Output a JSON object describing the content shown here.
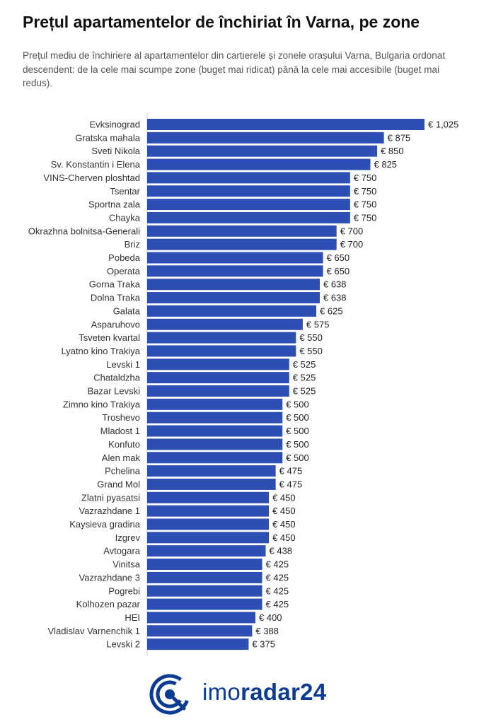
{
  "header": {
    "title": "Prețul apartamentelor de închiriat în Varna, pe zone",
    "subtitle": "Prețul mediu de închiriere al apartamentelor din cartierele și zonele orașului Varna, Bulgaria ordonat descendent: de la cele mai scumpe zone (buget mai ridicat) până la cele mai accesibile (buget mai redus)."
  },
  "chart_data": {
    "type": "bar",
    "orientation": "horizontal",
    "categories": [
      "Evksinograd",
      "Gratska mahala",
      "Sveti Nikola",
      "Sv. Konstantin i Elena",
      "VINS-Cherven ploshtad",
      "Tsentar",
      "Sportna zala",
      "Chayka",
      "Okrazhna bolnitsa-Generali",
      "Briz",
      "Pobeda",
      "Operata",
      "Gorna Traka",
      "Dolna Traka",
      "Galata",
      "Asparuhovo",
      "Tsveten kvartal",
      "Lyatno kino Trakiya",
      "Levski 1",
      "Chataldzha",
      "Bazar Levski",
      "Zimno kino Trakiya",
      "Troshevo",
      "Mladost 1",
      "Konfuto",
      "Alen mak",
      "Pchelina",
      "Grand Mol",
      "Zlatni pyasatsi",
      "Vazrazhdane 1",
      "Kaysieva gradina",
      "Izgrev",
      "Avtogara",
      "Vinitsa",
      "Vazrazhdane 3",
      "Pogrebi",
      "Kolhozen pazar",
      "HEI",
      "Vladislav Varnenchik 1",
      "Levski 2"
    ],
    "values": [
      1025,
      875,
      850,
      825,
      750,
      750,
      750,
      750,
      700,
      700,
      650,
      650,
      638,
      638,
      625,
      575,
      550,
      550,
      525,
      525,
      525,
      500,
      500,
      500,
      500,
      500,
      475,
      475,
      450,
      450,
      450,
      450,
      438,
      425,
      425,
      425,
      425,
      400,
      388,
      375
    ],
    "value_labels": [
      "€ 1,025",
      "€ 875",
      "€ 850",
      "€ 825",
      "€ 750",
      "€ 750",
      "€ 750",
      "€ 750",
      "€ 700",
      "€ 700",
      "€ 650",
      "€ 650",
      "€ 638",
      "€ 638",
      "€ 625",
      "€ 575",
      "€ 550",
      "€ 550",
      "€ 525",
      "€ 525",
      "€ 525",
      "€ 500",
      "€ 500",
      "€ 500",
      "€ 500",
      "€ 500",
      "€ 475",
      "€ 475",
      "€ 450",
      "€ 450",
      "€ 450",
      "€ 450",
      "€ 438",
      "€ 425",
      "€ 425",
      "€ 425",
      "€ 425",
      "€ 400",
      "€ 388",
      "€ 375"
    ],
    "xlim": [
      0,
      1025
    ],
    "bar_color": "#2d4fb5",
    "grid": false,
    "legend": "none"
  },
  "logo": {
    "text_light": "imo",
    "text_bold": "radar24",
    "color": "#0c3b94"
  }
}
